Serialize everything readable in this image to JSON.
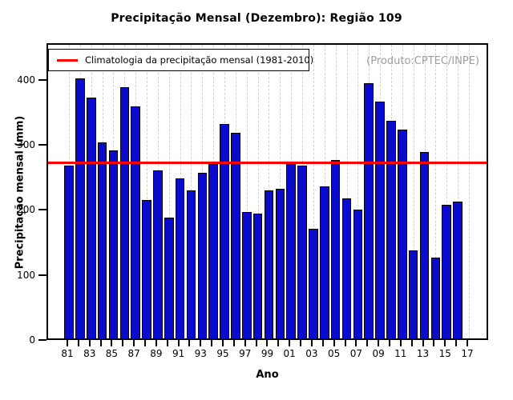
{
  "title": "Precipitação Mensal (Dezembro): Região 109",
  "watermark": "(Produto:CPTEC/INPE)",
  "legend": {
    "label": "Climatologia da precipitação mensal (1981-2010)"
  },
  "axes": {
    "xlabel": "Ano",
    "ylabel": "Precipitação mensal (mm)"
  },
  "chart_data": {
    "type": "bar",
    "title": "Precipitação Mensal (Dezembro): Região 109",
    "xlabel": "Ano",
    "ylabel": "Precipitação mensal (mm)",
    "legend_label": "Climatologia da precipitação mensal (1981-2010)",
    "annotation": "(Produto:CPTEC/INPE)",
    "years": [
      1981,
      1982,
      1983,
      1984,
      1985,
      1986,
      1987,
      1988,
      1989,
      1990,
      1991,
      1992,
      1993,
      1994,
      1995,
      1996,
      1997,
      1998,
      1999,
      2000,
      2001,
      2002,
      2003,
      2004,
      2005,
      2006,
      2007,
      2008,
      2009,
      2010,
      2011,
      2012,
      2013,
      2014,
      2015,
      2016
    ],
    "values": [
      265,
      400,
      370,
      301,
      289,
      386,
      357,
      213,
      258,
      186,
      246,
      228,
      254,
      268,
      330,
      316,
      194,
      192,
      228,
      230,
      270,
      266,
      168,
      233,
      274,
      215,
      198,
      392,
      364,
      334,
      321,
      135,
      286,
      124,
      205,
      210
    ],
    "climatology_1981_2010": 275,
    "x_axis_years": [
      1981,
      2017
    ],
    "x_tick_labels": [
      "81",
      "83",
      "85",
      "87",
      "89",
      "91",
      "93",
      "95",
      "97",
      "99",
      "01",
      "03",
      "05",
      "07",
      "09",
      "11",
      "13",
      "15",
      "17"
    ],
    "y_ticks": [
      0,
      100,
      200,
      300,
      400
    ],
    "ylim": [
      0,
      456
    ],
    "grid": "vertical-dashed-every-year",
    "legend_position": "top-left",
    "colors": {
      "bar_fill": "#0b0bcd",
      "bar_border": "#000000",
      "climatology_line": "#ff0000",
      "grid_line": "#d2d2d2",
      "annotation_text": "#9e9e9e"
    }
  }
}
